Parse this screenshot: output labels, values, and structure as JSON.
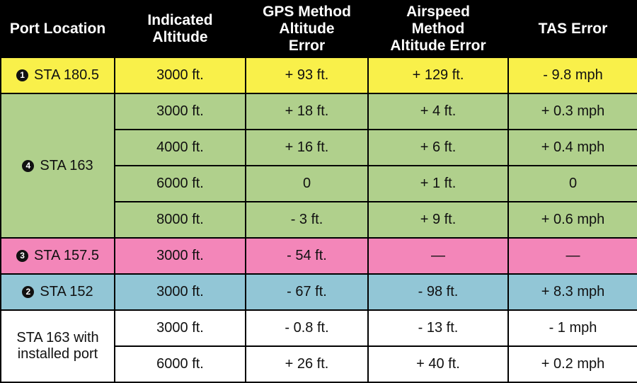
{
  "headers": [
    "Port Location",
    "Indicated Altitude",
    "GPS Method Altitude Error",
    "Airspeed Method Altitude Error",
    "TAS Error"
  ],
  "colors": {
    "header_bg": "#000000",
    "yellow": "#f9f04a",
    "green": "#b0d08c",
    "pink": "#f386b9",
    "blue": "#92c6d6",
    "white": "#ffffff"
  },
  "groups": [
    {
      "badge": "1",
      "location": "STA 180.5",
      "color": "#f9f04a",
      "rows": [
        [
          "3000 ft.",
          "+ 93 ft.",
          "+ 129 ft.",
          "- 9.8 mph"
        ]
      ]
    },
    {
      "badge": "4",
      "location": "STA 163",
      "color": "#b0d08c",
      "rows": [
        [
          "3000 ft.",
          "+ 18 ft.",
          "+ 4 ft.",
          "+ 0.3 mph"
        ],
        [
          "4000 ft.",
          "+ 16 ft.",
          "+ 6 ft.",
          "+ 0.4 mph"
        ],
        [
          "6000 ft.",
          "0",
          "+ 1 ft.",
          "0"
        ],
        [
          "8000 ft.",
          "- 3 ft.",
          "+ 9 ft.",
          "+ 0.6 mph"
        ]
      ]
    },
    {
      "badge": "3",
      "location": "STA 157.5",
      "color": "#f386b9",
      "rows": [
        [
          "3000 ft.",
          "- 54 ft.",
          "—",
          "—"
        ]
      ]
    },
    {
      "badge": "2",
      "location": "STA 152",
      "color": "#92c6d6",
      "rows": [
        [
          "3000 ft.",
          "- 67 ft.",
          "- 98 ft.",
          "+ 8.3 mph"
        ]
      ]
    },
    {
      "badge": "",
      "location": "STA 163 with installed port",
      "color": "#ffffff",
      "rows": [
        [
          "3000 ft.",
          "- 0.8 ft.",
          "- 13 ft.",
          "- 1 mph"
        ],
        [
          "6000 ft.",
          "+ 26 ft.",
          "+ 40 ft.",
          "+ 0.2 mph"
        ]
      ]
    }
  ]
}
